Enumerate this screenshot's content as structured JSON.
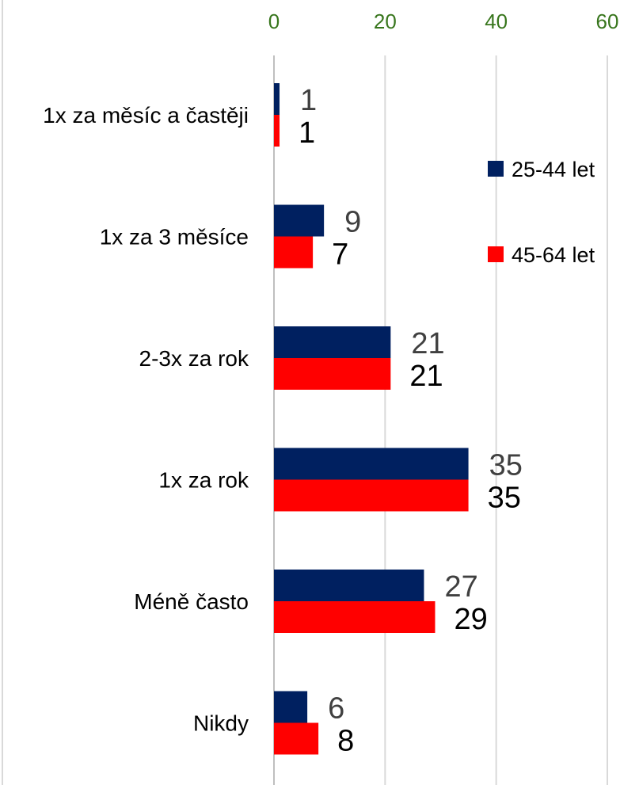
{
  "chart_data": {
    "type": "bar",
    "orientation": "horizontal",
    "categories": [
      "1x za měsíc a častěji",
      "1x za 3 měsíce",
      "2-3x za rok",
      "1x za rok",
      "Méně často",
      "Nikdy"
    ],
    "series": [
      {
        "name": "25-44 let",
        "values": [
          1,
          9,
          21,
          35,
          27,
          6
        ],
        "color": "#002060"
      },
      {
        "name": "45-64 let",
        "values": [
          1,
          7,
          21,
          35,
          29,
          8
        ],
        "color": "#ff0000"
      }
    ],
    "xlim": [
      0,
      60
    ],
    "ticks": [
      0,
      20,
      40,
      60
    ],
    "tick_labels": [
      "0",
      "20",
      "40",
      "60"
    ],
    "axis_position": "top",
    "grid": true,
    "legend_position": "right",
    "data_labels": true,
    "colors": {
      "tick_label": "#38761d",
      "grid": "#d9d9d9",
      "label_series_1": "#404040",
      "label_series_2": "#000000"
    }
  }
}
